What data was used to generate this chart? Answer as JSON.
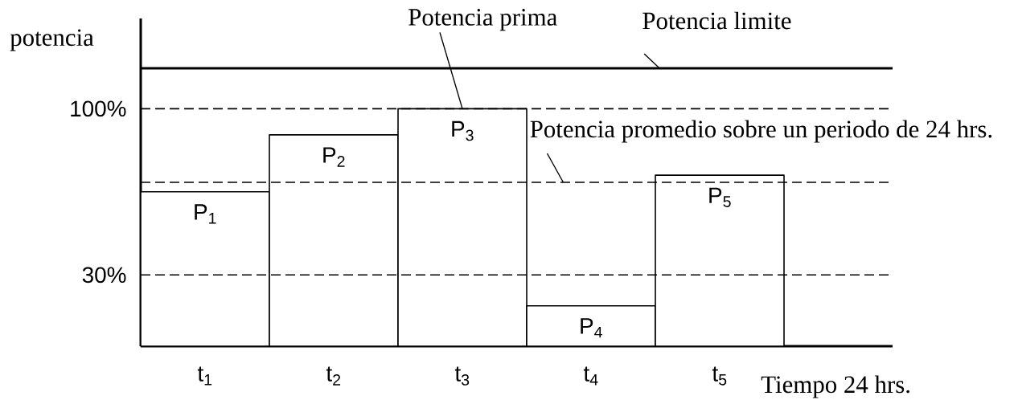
{
  "chart_data": {
    "type": "bar",
    "xlabel": "Tiempo 24 hrs.",
    "ylabel": "potencia",
    "categories": [
      "t$_{1}$",
      "t$_{2}$",
      "t$_{3}$",
      "t$_{4}$",
      "t$_{5}$"
    ],
    "values": [
      65,
      89,
      100,
      17,
      72
    ],
    "color": "#ffffff",
    "ylim": [
      0,
      138
    ],
    "yticks": [
      {
        "value": 30,
        "label": "30%"
      },
      {
        "value": 100,
        "label": "100%"
      }
    ],
    "ref_lines": [
      {
        "axis": "y",
        "value": 117,
        "label": "Potencia limite",
        "line_style": "solid"
      },
      {
        "axis": "y",
        "value": 69,
        "label": "Potencia promedio sobre un periodo de 24 hrs.",
        "line_style": "dashed"
      },
      {
        "axis": "y",
        "value": 100,
        "line_style": "dashed"
      },
      {
        "axis": "y",
        "value": 30,
        "line_style": "dashed"
      }
    ],
    "annotations": [
      {
        "text": "Potencia prima",
        "x": "t$_{3}$",
        "y": 100
      },
      {
        "text": "P$_{1}$",
        "x": "t$_{1}$",
        "y": 65
      },
      {
        "text": "P$_{2}$",
        "x": "t$_{2}$",
        "y": 89
      },
      {
        "text": "P$_{3}$",
        "x": "t$_{3}$",
        "y": 100
      },
      {
        "text": "P$_{4}$",
        "x": "t$_{4}$",
        "y": 17
      },
      {
        "text": "P$_{5}$",
        "x": "t$_{5}$",
        "y": 72
      }
    ]
  }
}
